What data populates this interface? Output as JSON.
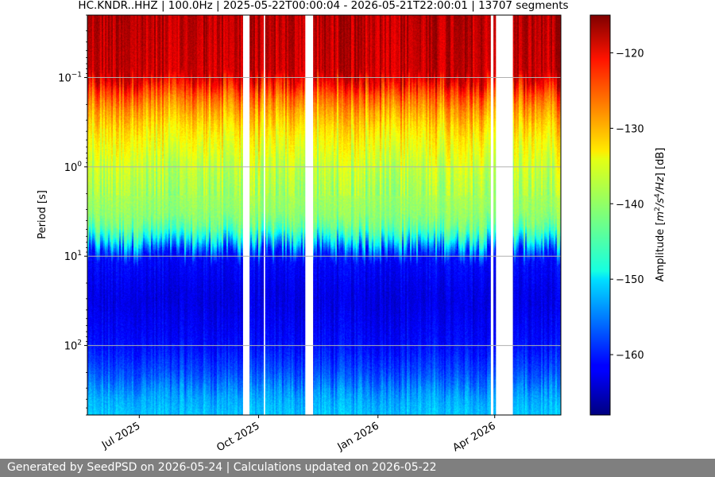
{
  "title": "HC.KNDR..HHZ | 100.0Hz | 2025-05-22T00:00:04 - 2026-05-21T22:00:01 | 13707 segments",
  "footer": "Generated by SeedPSD on 2026-05-24 | Calculations updated on 2026-05-22",
  "chart_data": {
    "type": "heatmap",
    "title": "HC.KNDR..HHZ | 100.0Hz | 2025-05-22T00:00:04 - 2026-05-21T22:00:01 | 13707 segments",
    "xlabel": "",
    "ylabel": "Period [s]",
    "x_scale": "time",
    "xlim": [
      "2025-05-22",
      "2026-05-22"
    ],
    "x_ticks": [
      {
        "date": "2025-07-01",
        "label": "Jul 2025"
      },
      {
        "date": "2025-10-01",
        "label": "Oct 2025"
      },
      {
        "date": "2026-01-01",
        "label": "Jan 2026"
      },
      {
        "date": "2026-04-01",
        "label": "Apr 2026"
      }
    ],
    "y_scale": "log",
    "y_inverted": true,
    "ylim": [
      0.02,
      600
    ],
    "y_ticks": [
      {
        "value": 0.1,
        "base": "10",
        "exp": "−1"
      },
      {
        "value": 1,
        "base": "10",
        "exp": "0"
      },
      {
        "value": 10,
        "base": "10",
        "exp": "1"
      },
      {
        "value": 100,
        "base": "10",
        "exp": "2"
      }
    ],
    "grid": "horizontal",
    "colorbar": {
      "label_parts": [
        "Amplitude [",
        "m",
        "2",
        "/s",
        "4",
        "/Hz",
        "] [dB]"
      ],
      "colormap": "jet",
      "range": [
        -168,
        -115
      ],
      "ticks": [
        {
          "value": -120,
          "label": "−120"
        },
        {
          "value": -130,
          "label": "−130"
        },
        {
          "value": -140,
          "label": "−140"
        },
        {
          "value": -150,
          "label": "−150"
        },
        {
          "value": -160,
          "label": "−160"
        }
      ]
    },
    "profile": [
      {
        "period": 0.02,
        "db": -118
      },
      {
        "period": 0.1,
        "db": -119
      },
      {
        "period": 0.13,
        "db": -124
      },
      {
        "period": 0.2,
        "db": -129
      },
      {
        "period": 0.4,
        "db": -134
      },
      {
        "period": 1,
        "db": -138
      },
      {
        "period": 2.5,
        "db": -140
      },
      {
        "period": 4,
        "db": -141
      },
      {
        "period": 6,
        "db": -146
      },
      {
        "period": 8,
        "db": -155
      },
      {
        "period": 10,
        "db": -161
      },
      {
        "period": 30,
        "db": -163
      },
      {
        "period": 100,
        "db": -161
      },
      {
        "period": 220,
        "db": -157
      },
      {
        "period": 350,
        "db": -153
      },
      {
        "period": 600,
        "db": -151
      }
    ],
    "data_gaps": [
      [
        "2025-09-19",
        "2025-09-24"
      ],
      [
        "2025-10-05",
        "2025-10-06"
      ],
      [
        "2025-11-06",
        "2025-11-12"
      ],
      [
        "2026-03-29",
        "2026-03-31"
      ],
      [
        "2026-04-02",
        "2026-04-15"
      ]
    ]
  }
}
